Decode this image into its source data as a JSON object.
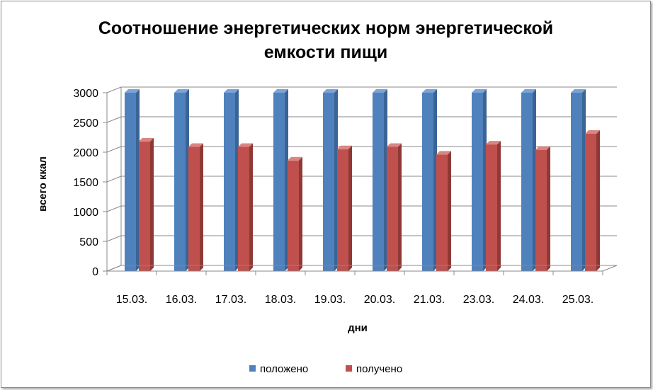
{
  "chart_data": {
    "type": "bar",
    "title_line1": "Соотношение  энергетических норм энергетической",
    "title_line2": "емкости пищи",
    "xlabel": "дни",
    "ylabel": "всего ккал",
    "ylim": [
      0,
      3000
    ],
    "yticks": [
      "0",
      "500",
      "1000",
      "1500",
      "2000",
      "2500",
      "3000"
    ],
    "categories": [
      "15.03.",
      "16.03.",
      "17.03.",
      "18.03.",
      "19.03.",
      "20.03.",
      "21.03.",
      "23.03.",
      "24.03.",
      "25.03."
    ],
    "series": [
      {
        "name": "положено",
        "color": "#4f81bd",
        "top": "#7aa3d8",
        "side": "#3a6496",
        "values": [
          3000,
          3000,
          3000,
          3000,
          3000,
          3000,
          3000,
          3000,
          3000,
          3000
        ]
      },
      {
        "name": "получено",
        "color": "#c0504d",
        "top": "#d98683",
        "side": "#8f3936",
        "values": [
          2180,
          2090,
          2090,
          1860,
          2050,
          2090,
          1960,
          2130,
          2040,
          2310
        ]
      }
    ],
    "grid": true,
    "legend_position": "bottom"
  }
}
